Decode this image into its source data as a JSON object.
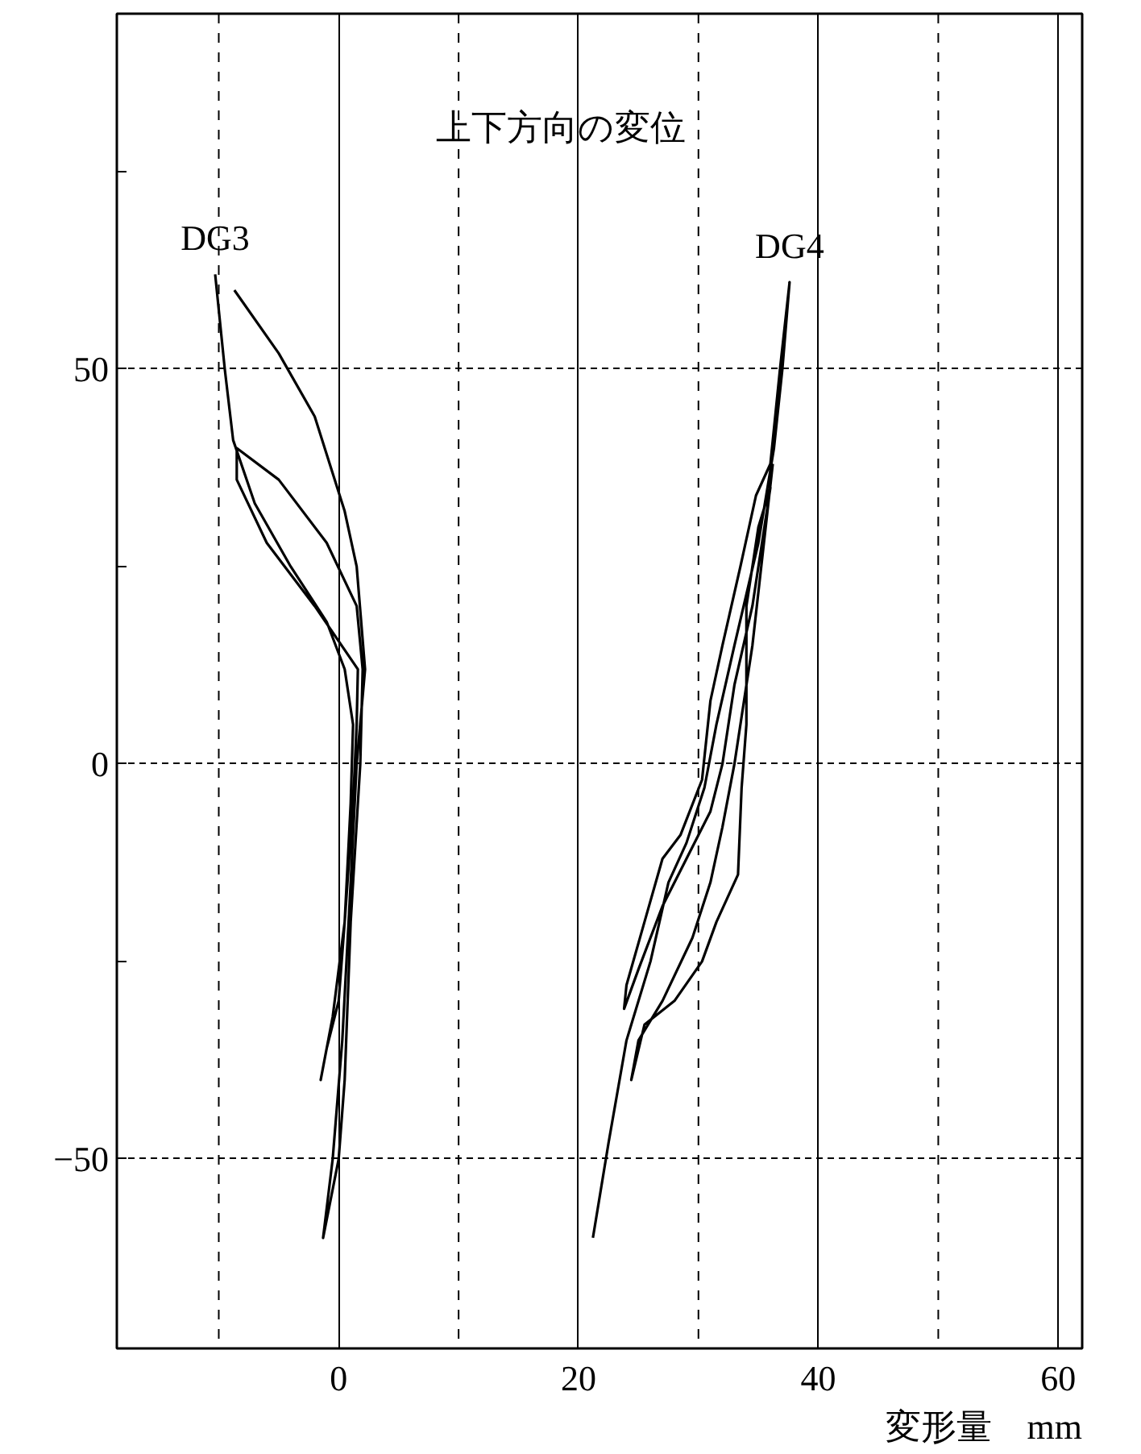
{
  "chart_data": {
    "type": "line",
    "title": "上下方向の変位",
    "xlabel": "変形量　mm",
    "xlim": [
      -18.5,
      62
    ],
    "ylim": [
      -74,
      95
    ],
    "xticks": [
      0,
      20,
      40,
      60
    ],
    "yticks": [
      {
        "value": -25,
        "label": null
      },
      -50,
      0,
      50,
      {
        "value": 25,
        "label": null
      },
      {
        "value": 75,
        "label": null
      }
    ],
    "grid": true,
    "ref_lines": [
      {
        "axis": "x",
        "value": -10,
        "line_style": "dashed",
        "color": "#000000"
      },
      {
        "axis": "x",
        "value": 10,
        "line_style": "dashed",
        "color": "#000000"
      },
      {
        "axis": "x",
        "value": 30,
        "line_style": "dashed",
        "color": "#000000"
      },
      {
        "axis": "x",
        "value": 50,
        "line_style": "dashed",
        "color": "#000000"
      }
    ],
    "line_style": "solid",
    "series": [
      {
        "name": "DG3",
        "color": "#000000",
        "x": [
          -10.3,
          -9.5,
          -8.8,
          -7,
          -4,
          -1,
          0.5,
          1.2,
          1,
          0.5,
          0,
          -1,
          -1.5,
          -0.5,
          0.5,
          1.2,
          1.5,
          1.6,
          -2,
          -6,
          -8.5,
          -8.5,
          -5,
          -1,
          1.5,
          2,
          1.8,
          1,
          0.5,
          0,
          -1.3,
          -0.5,
          0.3,
          1,
          1.5,
          2.2,
          1.5,
          0.5,
          -2,
          -5,
          -8.7
        ],
        "values": [
          62,
          50,
          41,
          33,
          25,
          18,
          12,
          5,
          -5,
          -20,
          -30,
          -36,
          -40,
          -32,
          -20,
          -5,
          5,
          12,
          20,
          28,
          36,
          40,
          36,
          28,
          20,
          12,
          0,
          -20,
          -40,
          -50,
          -60,
          -50,
          -35,
          -15,
          0,
          12,
          25,
          32,
          44,
          52,
          60
        ]
      },
      {
        "name": "DG4",
        "color": "#000000",
        "x": [
          21.2,
          22.5,
          24,
          26,
          27.5,
          29,
          30.5,
          31.5,
          33,
          35,
          36.3,
          37,
          37.6,
          36.8,
          36,
          34.8,
          33.5,
          32,
          31,
          30.3,
          28.5,
          27,
          25.5,
          24,
          23.8,
          25,
          27,
          29,
          31,
          32,
          33,
          34.5,
          36,
          35,
          34,
          34,
          33.6,
          33.3,
          31.5,
          30.3,
          28,
          25.5,
          24.4,
          25,
          27,
          29.5,
          31,
          32,
          33,
          34.5,
          36.2
        ],
        "values": [
          -60,
          -48,
          -35,
          -25,
          -15,
          -10,
          -3,
          5,
          15,
          28,
          40,
          50,
          61,
          50,
          38,
          34,
          25,
          15,
          8,
          -2,
          -9,
          -12,
          -20,
          -28,
          -31,
          -26,
          -18,
          -12,
          -6,
          0,
          10,
          20,
          35,
          30,
          20,
          5,
          -3,
          -14,
          -20,
          -25,
          -30,
          -33,
          -40,
          -35,
          -30,
          -22,
          -15,
          -8,
          0,
          15,
          38
        ]
      }
    ]
  }
}
